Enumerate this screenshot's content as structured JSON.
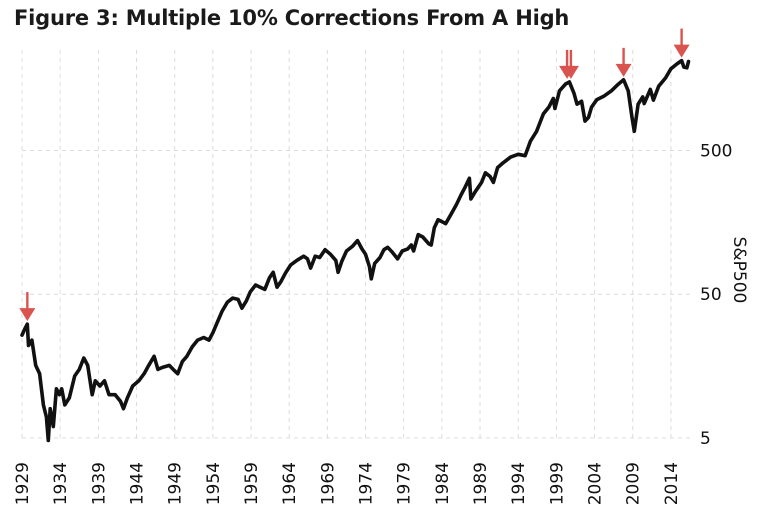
{
  "title": "Figure 3: Multiple 10% Corrections From A High",
  "chart_data": {
    "type": "line",
    "title": "Figure 3: Multiple 10% Corrections From A High",
    "xlabel": "",
    "ylabel": "S&P500",
    "y_scale": "log",
    "xlim": [
      1929,
      2016.5
    ],
    "ylim": [
      5,
      2500
    ],
    "grid": true,
    "x_ticks": [
      {
        "value": 1929,
        "label": "1929"
      },
      {
        "value": 1934,
        "label": "1934"
      },
      {
        "value": 1939,
        "label": "1939"
      },
      {
        "value": 1944,
        "label": "1944"
      },
      {
        "value": 1949,
        "label": "1949"
      },
      {
        "value": 1954,
        "label": "1954"
      },
      {
        "value": 1959,
        "label": "1959"
      },
      {
        "value": 1964,
        "label": "1964"
      },
      {
        "value": 1969,
        "label": "1969"
      },
      {
        "value": 1974,
        "label": "1974"
      },
      {
        "value": 1979,
        "label": "1979"
      },
      {
        "value": 1984,
        "label": "1984"
      },
      {
        "value": 1989,
        "label": "1989"
      },
      {
        "value": 1994,
        "label": "1994"
      },
      {
        "value": 1999,
        "label": "1999"
      },
      {
        "value": 2004,
        "label": "2004"
      },
      {
        "value": 2009,
        "label": "2009"
      },
      {
        "value": 2014,
        "label": "2014"
      }
    ],
    "y_ticks": [
      {
        "value": 5,
        "label": "5"
      },
      {
        "value": 50,
        "label": "50"
      },
      {
        "value": 500,
        "label": "500"
      }
    ],
    "series": [
      {
        "name": "",
        "color": "#111111",
        "points": [
          [
            1929.0,
            26
          ],
          [
            1929.4,
            29
          ],
          [
            1929.7,
            31
          ],
          [
            1929.85,
            22
          ],
          [
            1930.3,
            24
          ],
          [
            1930.8,
            16
          ],
          [
            1931.3,
            14
          ],
          [
            1931.8,
            8.5
          ],
          [
            1932.2,
            7.0
          ],
          [
            1932.45,
            4.8
          ],
          [
            1932.7,
            8.0
          ],
          [
            1933.1,
            6.0
          ],
          [
            1933.5,
            11
          ],
          [
            1933.9,
            10
          ],
          [
            1934.2,
            11
          ],
          [
            1934.6,
            8.5
          ],
          [
            1935.2,
            9.5
          ],
          [
            1935.9,
            13.5
          ],
          [
            1936.5,
            15
          ],
          [
            1937.1,
            18
          ],
          [
            1937.6,
            16
          ],
          [
            1938.2,
            10
          ],
          [
            1938.6,
            12.5
          ],
          [
            1939.2,
            11.5
          ],
          [
            1939.8,
            12.5
          ],
          [
            1940.4,
            10
          ],
          [
            1941.2,
            10
          ],
          [
            1941.9,
            9.0
          ],
          [
            1942.3,
            8.0
          ],
          [
            1942.8,
            9.5
          ],
          [
            1943.5,
            11.5
          ],
          [
            1944.3,
            12.5
          ],
          [
            1945.0,
            14
          ],
          [
            1945.6,
            16
          ],
          [
            1946.3,
            18.5
          ],
          [
            1946.8,
            15
          ],
          [
            1947.4,
            15.5
          ],
          [
            1948.3,
            16
          ],
          [
            1948.8,
            15
          ],
          [
            1949.4,
            14
          ],
          [
            1950.0,
            17
          ],
          [
            1950.6,
            18.5
          ],
          [
            1951.3,
            21.5
          ],
          [
            1952.0,
            24
          ],
          [
            1952.8,
            25
          ],
          [
            1953.5,
            24
          ],
          [
            1954.0,
            27
          ],
          [
            1954.6,
            32
          ],
          [
            1955.2,
            38
          ],
          [
            1955.9,
            44
          ],
          [
            1956.6,
            47
          ],
          [
            1957.3,
            46
          ],
          [
            1957.8,
            40
          ],
          [
            1958.4,
            45
          ],
          [
            1958.9,
            52
          ],
          [
            1959.6,
            58
          ],
          [
            1960.2,
            56
          ],
          [
            1960.8,
            54
          ],
          [
            1961.4,
            65
          ],
          [
            1961.9,
            71
          ],
          [
            1962.4,
            56
          ],
          [
            1962.9,
            61
          ],
          [
            1963.5,
            70
          ],
          [
            1964.2,
            80
          ],
          [
            1965.0,
            86
          ],
          [
            1965.9,
            92
          ],
          [
            1966.4,
            88
          ],
          [
            1966.8,
            76
          ],
          [
            1967.4,
            92
          ],
          [
            1968.0,
            90
          ],
          [
            1968.7,
            102
          ],
          [
            1969.4,
            95
          ],
          [
            1970.1,
            86
          ],
          [
            1970.4,
            71
          ],
          [
            1970.9,
            85
          ],
          [
            1971.5,
            100
          ],
          [
            1972.3,
            108
          ],
          [
            1972.95,
            118
          ],
          [
            1973.5,
            104
          ],
          [
            1974.0,
            95
          ],
          [
            1974.5,
            78
          ],
          [
            1974.75,
            64
          ],
          [
            1975.2,
            82
          ],
          [
            1975.9,
            90
          ],
          [
            1976.4,
            102
          ],
          [
            1976.9,
            106
          ],
          [
            1977.5,
            98
          ],
          [
            1978.2,
            88
          ],
          [
            1978.8,
            100
          ],
          [
            1979.5,
            103
          ],
          [
            1980.0,
            110
          ],
          [
            1980.3,
            100
          ],
          [
            1980.9,
            130
          ],
          [
            1981.5,
            125
          ],
          [
            1982.3,
            112
          ],
          [
            1982.6,
            110
          ],
          [
            1983.0,
            145
          ],
          [
            1983.5,
            165
          ],
          [
            1984.0,
            160
          ],
          [
            1984.5,
            155
          ],
          [
            1985.2,
            180
          ],
          [
            1985.9,
            210
          ],
          [
            1986.5,
            245
          ],
          [
            1987.0,
            275
          ],
          [
            1987.6,
            320
          ],
          [
            1987.8,
            230
          ],
          [
            1988.4,
            260
          ],
          [
            1989.2,
            300
          ],
          [
            1989.7,
            350
          ],
          [
            1990.3,
            330
          ],
          [
            1990.75,
            300
          ],
          [
            1991.3,
            380
          ],
          [
            1992.0,
            410
          ],
          [
            1993.0,
            450
          ],
          [
            1994.0,
            470
          ],
          [
            1994.9,
            460
          ],
          [
            1995.6,
            580
          ],
          [
            1996.4,
            680
          ],
          [
            1997.3,
            900
          ],
          [
            1998.0,
            1000
          ],
          [
            1998.6,
            1150
          ],
          [
            1998.8,
            980
          ],
          [
            1999.4,
            1300
          ],
          [
            2000.2,
            1450
          ],
          [
            2000.7,
            1500
          ],
          [
            2001.3,
            1250
          ],
          [
            2001.7,
            1050
          ],
          [
            2002.3,
            1100
          ],
          [
            2002.75,
            800
          ],
          [
            2003.2,
            850
          ],
          [
            2003.6,
            1000
          ],
          [
            2004.3,
            1130
          ],
          [
            2005.2,
            1190
          ],
          [
            2006.2,
            1300
          ],
          [
            2007.0,
            1430
          ],
          [
            2007.8,
            1550
          ],
          [
            2008.4,
            1300
          ],
          [
            2008.9,
            850
          ],
          [
            2009.2,
            680
          ],
          [
            2009.7,
            1050
          ],
          [
            2010.3,
            1180
          ],
          [
            2010.5,
            1060
          ],
          [
            2011.3,
            1330
          ],
          [
            2011.7,
            1120
          ],
          [
            2012.4,
            1400
          ],
          [
            2013.3,
            1600
          ],
          [
            2014.0,
            1850
          ],
          [
            2014.8,
            2000
          ],
          [
            2015.4,
            2110
          ],
          [
            2015.7,
            1900
          ],
          [
            2016.1,
            1880
          ],
          [
            2016.3,
            2080
          ]
        ]
      }
    ],
    "annotations": [
      {
        "type": "arrow",
        "x": 1929.7,
        "y": 31,
        "color": "#d9534f"
      },
      {
        "type": "arrow",
        "x": 2000.4,
        "y": 1500,
        "color": "#d9534f"
      },
      {
        "type": "arrow",
        "x": 2000.9,
        "y": 1500,
        "color": "#d9534f"
      },
      {
        "type": "arrow",
        "x": 2007.8,
        "y": 1550,
        "color": "#d9534f"
      },
      {
        "type": "arrow",
        "x": 2015.4,
        "y": 2110,
        "color": "#d9534f"
      }
    ]
  }
}
